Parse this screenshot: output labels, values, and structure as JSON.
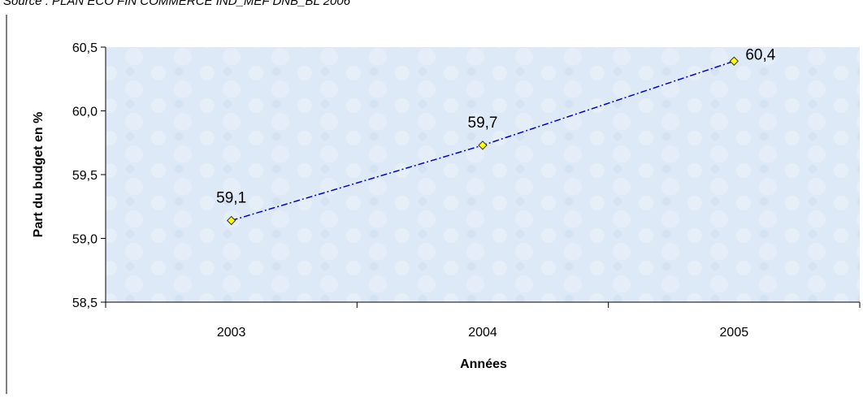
{
  "chart_data": {
    "type": "line",
    "source": "Source : PLAN ECO FIN COMMERCE IND_MEF DNB_BL 2006",
    "x_label": "Années",
    "y_label": "Part du budget en %",
    "categories": [
      "2003",
      "2004",
      "2005"
    ],
    "series": [
      {
        "color": "#0000cc",
        "marker_color": "#ffff00",
        "values": [
          59.14,
          59.73,
          60.39
        ],
        "value_labels": [
          "59,1",
          "59,7",
          "60,4"
        ]
      }
    ],
    "ylim": [
      58.5,
      60.5
    ],
    "yticks": [
      {
        "value": 58.5,
        "label": "58,5"
      },
      {
        "value": 59.0,
        "label": "59,0"
      },
      {
        "value": 59.5,
        "label": "59,5"
      },
      {
        "value": 60.0,
        "label": "60,0"
      },
      {
        "value": 60.5,
        "label": "60,5"
      }
    ],
    "plot_background": "#dde9f6"
  }
}
